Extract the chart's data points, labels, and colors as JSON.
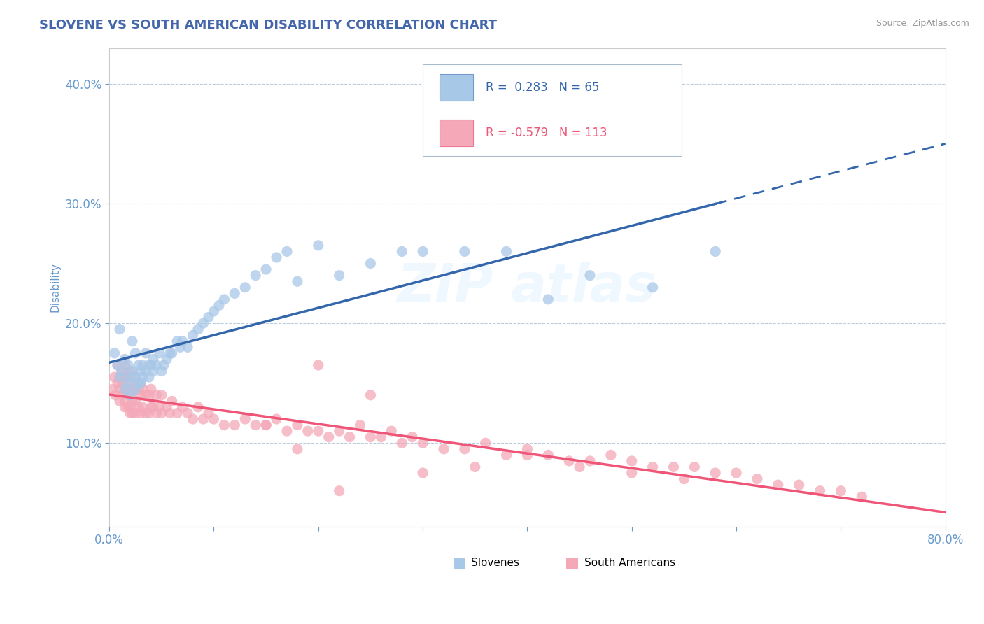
{
  "title": "SLOVENE VS SOUTH AMERICAN DISABILITY CORRELATION CHART",
  "source": "Source: ZipAtlas.com",
  "ylabel": "Disability",
  "xlim": [
    0.0,
    0.8
  ],
  "ylim": [
    0.03,
    0.43
  ],
  "xticks": [
    0.0,
    0.1,
    0.2,
    0.3,
    0.4,
    0.5,
    0.6,
    0.7,
    0.8
  ],
  "xticklabels": [
    "0.0%",
    "",
    "",
    "",
    "",
    "",
    "",
    "",
    "80.0%"
  ],
  "yticks": [
    0.1,
    0.2,
    0.3,
    0.4
  ],
  "yticklabels": [
    "10.0%",
    "20.0%",
    "30.0%",
    "40.0%"
  ],
  "slovene_R": 0.283,
  "slovene_N": 65,
  "south_american_R": -0.579,
  "south_american_N": 113,
  "slovene_color": "#A8C8E8",
  "south_american_color": "#F4A8B8",
  "trend_slovene_color": "#3366AA",
  "trend_south_american_color": "#EE5577",
  "background_color": "#FFFFFF",
  "grid_color": "#BBCCDD",
  "title_color": "#4466AA",
  "axis_color": "#6699CC",
  "legend_label_slovene": "Slovenes",
  "legend_label_south_american": "South Americans",
  "slovene_x": [
    0.005,
    0.008,
    0.01,
    0.01,
    0.012,
    0.015,
    0.015,
    0.018,
    0.018,
    0.02,
    0.02,
    0.022,
    0.022,
    0.025,
    0.025,
    0.025,
    0.028,
    0.028,
    0.03,
    0.03,
    0.032,
    0.032,
    0.035,
    0.035,
    0.038,
    0.038,
    0.04,
    0.042,
    0.042,
    0.045,
    0.048,
    0.05,
    0.052,
    0.055,
    0.058,
    0.06,
    0.065,
    0.068,
    0.07,
    0.075,
    0.08,
    0.085,
    0.09,
    0.095,
    0.1,
    0.105,
    0.11,
    0.12,
    0.13,
    0.14,
    0.15,
    0.16,
    0.17,
    0.18,
    0.2,
    0.22,
    0.25,
    0.28,
    0.3,
    0.34,
    0.38,
    0.42,
    0.46,
    0.52,
    0.58
  ],
  "slovene_y": [
    0.175,
    0.165,
    0.195,
    0.155,
    0.16,
    0.145,
    0.17,
    0.15,
    0.165,
    0.14,
    0.155,
    0.16,
    0.185,
    0.145,
    0.155,
    0.175,
    0.15,
    0.165,
    0.15,
    0.16,
    0.165,
    0.155,
    0.16,
    0.175,
    0.155,
    0.165,
    0.165,
    0.17,
    0.16,
    0.165,
    0.175,
    0.16,
    0.165,
    0.17,
    0.175,
    0.175,
    0.185,
    0.18,
    0.185,
    0.18,
    0.19,
    0.195,
    0.2,
    0.205,
    0.21,
    0.215,
    0.22,
    0.225,
    0.23,
    0.24,
    0.245,
    0.255,
    0.26,
    0.235,
    0.265,
    0.24,
    0.25,
    0.26,
    0.26,
    0.26,
    0.26,
    0.22,
    0.24,
    0.23,
    0.26
  ],
  "south_american_x": [
    0.003,
    0.005,
    0.006,
    0.008,
    0.008,
    0.01,
    0.01,
    0.01,
    0.012,
    0.012,
    0.012,
    0.015,
    0.015,
    0.015,
    0.015,
    0.015,
    0.018,
    0.018,
    0.018,
    0.02,
    0.02,
    0.02,
    0.02,
    0.02,
    0.022,
    0.022,
    0.022,
    0.025,
    0.025,
    0.025,
    0.025,
    0.028,
    0.028,
    0.03,
    0.03,
    0.03,
    0.032,
    0.032,
    0.035,
    0.035,
    0.038,
    0.038,
    0.04,
    0.04,
    0.042,
    0.045,
    0.045,
    0.048,
    0.05,
    0.05,
    0.055,
    0.058,
    0.06,
    0.065,
    0.07,
    0.075,
    0.08,
    0.085,
    0.09,
    0.095,
    0.1,
    0.11,
    0.12,
    0.13,
    0.14,
    0.15,
    0.16,
    0.17,
    0.18,
    0.19,
    0.2,
    0.21,
    0.22,
    0.23,
    0.24,
    0.25,
    0.26,
    0.27,
    0.28,
    0.29,
    0.3,
    0.32,
    0.34,
    0.36,
    0.38,
    0.4,
    0.42,
    0.44,
    0.46,
    0.48,
    0.5,
    0.52,
    0.54,
    0.56,
    0.58,
    0.6,
    0.62,
    0.64,
    0.66,
    0.68,
    0.7,
    0.72,
    0.3,
    0.35,
    0.4,
    0.45,
    0.5,
    0.55,
    0.2,
    0.25,
    0.15,
    0.18,
    0.22
  ],
  "south_american_y": [
    0.145,
    0.155,
    0.14,
    0.15,
    0.165,
    0.135,
    0.145,
    0.155,
    0.14,
    0.15,
    0.16,
    0.135,
    0.145,
    0.13,
    0.155,
    0.165,
    0.13,
    0.145,
    0.155,
    0.13,
    0.14,
    0.15,
    0.16,
    0.125,
    0.135,
    0.145,
    0.125,
    0.135,
    0.145,
    0.125,
    0.155,
    0.13,
    0.145,
    0.125,
    0.14,
    0.15,
    0.13,
    0.145,
    0.125,
    0.14,
    0.125,
    0.14,
    0.13,
    0.145,
    0.13,
    0.125,
    0.14,
    0.13,
    0.125,
    0.14,
    0.13,
    0.125,
    0.135,
    0.125,
    0.13,
    0.125,
    0.12,
    0.13,
    0.12,
    0.125,
    0.12,
    0.115,
    0.115,
    0.12,
    0.115,
    0.115,
    0.12,
    0.11,
    0.115,
    0.11,
    0.11,
    0.105,
    0.11,
    0.105,
    0.115,
    0.105,
    0.105,
    0.11,
    0.1,
    0.105,
    0.1,
    0.095,
    0.095,
    0.1,
    0.09,
    0.095,
    0.09,
    0.085,
    0.085,
    0.09,
    0.085,
    0.08,
    0.08,
    0.08,
    0.075,
    0.075,
    0.07,
    0.065,
    0.065,
    0.06,
    0.06,
    0.055,
    0.075,
    0.08,
    0.09,
    0.08,
    0.075,
    0.07,
    0.165,
    0.14,
    0.115,
    0.095,
    0.06
  ]
}
